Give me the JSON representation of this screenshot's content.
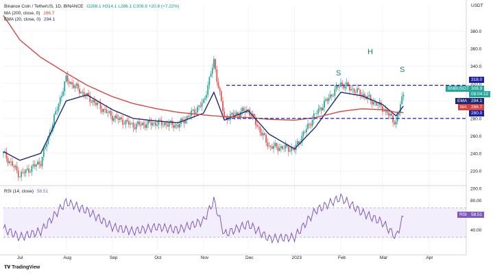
{
  "header": {
    "pair": "Binance Coin / TetherUS, 1D, BINANCE",
    "ohlc": "O288.1  H314.1  L286.1  C308.9  +20.8 (+7.22%)",
    "ma_label": "MA (200, close, 0)",
    "ma_value": "286.7",
    "ema_label": "EMA (20, close, 0)",
    "ema_value": "294.1",
    "rsi_label": "RSI (14, close)",
    "rsi_value": "58.51"
  },
  "axis": {
    "currency": "USDT",
    "price_ticks": [
      "380.0",
      "360.0",
      "340.0",
      "320.0",
      "300.0",
      "280.0",
      "260.0",
      "240.0",
      "220.0",
      "200.0"
    ],
    "rsi_ticks": [
      "80.00",
      "40.00"
    ],
    "months": [
      "Jul",
      "Aug",
      "Sep",
      "Oct",
      "Nov",
      "Dec",
      "2023",
      "Feb",
      "Mar",
      "Apr"
    ]
  },
  "tags": {
    "level_high": "318.0",
    "symbol": "BNBUSDT",
    "price": "308.9",
    "countdown": "08:04:12",
    "ema_tag": "EMA",
    "ema_val": "294.1",
    "ma_tag": "MA",
    "ma_val": "286.7",
    "level_low": "280.0",
    "rsi_tag": "RSI",
    "rsi_val": "58.51"
  },
  "annotations": [
    "S",
    "H",
    "S"
  ],
  "watermark": "TradingView",
  "colors": {
    "up": "#26a69a",
    "down": "#ef5350",
    "ema": "#1e2a78",
    "ma": "#d6453d",
    "level": "#1b1ea8",
    "rsi": "#7e57c2"
  },
  "chart_data": {
    "type": "line",
    "title": "Binance Coin / TetherUS, 1D, BINANCE",
    "x": [
      "2022-06-20",
      "2022-07-01",
      "2022-07-15",
      "2022-08-01",
      "2022-08-15",
      "2022-09-01",
      "2022-09-15",
      "2022-10-01",
      "2022-10-15",
      "2022-11-01",
      "2022-11-08",
      "2022-11-15",
      "2022-12-01",
      "2022-12-15",
      "2023-01-01",
      "2023-01-15",
      "2023-02-01",
      "2023-02-15",
      "2023-03-01",
      "2023-03-10",
      "2023-03-15"
    ],
    "series": [
      {
        "name": "BNBUSDT",
        "values": [
          240,
          215,
          230,
          325,
          305,
          282,
          272,
          275,
          272,
          298,
          345,
          280,
          290,
          248,
          245,
          285,
          320,
          308,
          292,
          275,
          308.9
        ]
      },
      {
        "name": "EMA (20, close, 0)",
        "values": [
          242,
          232,
          240,
          300,
          307,
          290,
          280,
          277,
          275,
          286,
          310,
          278,
          289,
          262,
          245,
          270,
          310,
          306,
          296,
          283,
          294.1
        ]
      },
      {
        "name": "MA (200, close, 0)",
        "values": [
          398,
          370,
          350,
          332,
          318,
          305,
          297,
          291,
          287,
          284,
          283,
          282,
          281,
          279,
          278,
          281,
          288,
          291,
          290,
          287,
          286.7
        ]
      }
    ],
    "rsi": {
      "name": "RSI (14, close)",
      "values": [
        42,
        30,
        38,
        78,
        66,
        44,
        38,
        44,
        40,
        52,
        80,
        34,
        48,
        28,
        30,
        66,
        84,
        64,
        50,
        30,
        58.51
      ],
      "levels": [
        70,
        30
      ]
    },
    "levels": [
      318.0,
      280.0
    ],
    "ylim": [
      200,
      400
    ],
    "rsi_ylim": [
      20,
      90
    ],
    "grid": true
  }
}
